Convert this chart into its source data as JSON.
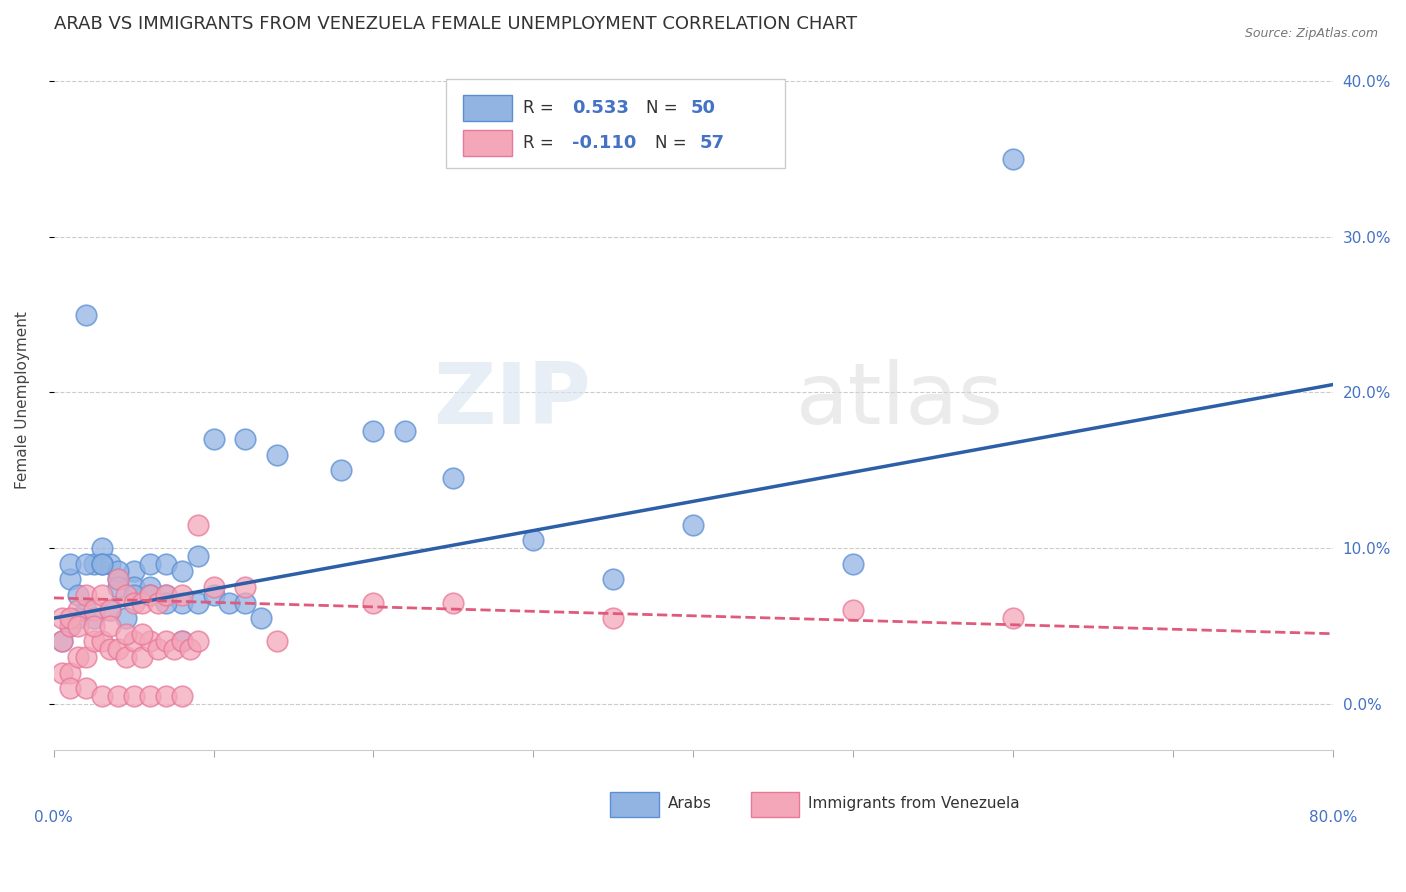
{
  "title": "ARAB VS IMMIGRANTS FROM VENEZUELA FEMALE UNEMPLOYMENT CORRELATION CHART",
  "source": "Source: ZipAtlas.com",
  "ylabel": "Female Unemployment",
  "xmin": 0.0,
  "xmax": 0.8,
  "ymin": -0.03,
  "ymax": 0.42,
  "arab_color": "#92b4e3",
  "arab_edge_color": "#5b8fd4",
  "venezuela_color": "#f4a7b9",
  "venezuela_edge_color": "#e8789a",
  "trend_arab_color": "#2c5fa8",
  "trend_venezuela_color": "#e05a7a",
  "legend_label_arab": "Arabs",
  "legend_label_venezuela": "Immigrants from Venezuela",
  "arab_R": 0.533,
  "arab_N": 50,
  "venezuela_R": -0.11,
  "venezuela_N": 57,
  "arab_x": [
    0.02,
    0.01,
    0.005,
    0.015,
    0.025,
    0.03,
    0.035,
    0.04,
    0.05,
    0.06,
    0.07,
    0.08,
    0.09,
    0.1,
    0.12,
    0.14,
    0.18,
    0.2,
    0.22,
    0.25,
    0.3,
    0.35,
    0.4,
    0.5,
    0.6,
    0.01,
    0.02,
    0.03,
    0.04,
    0.05,
    0.06,
    0.07,
    0.08,
    0.09,
    0.1,
    0.11,
    0.12,
    0.13,
    0.02,
    0.03,
    0.04,
    0.05,
    0.06,
    0.07,
    0.08,
    0.01,
    0.015,
    0.025,
    0.035,
    0.045
  ],
  "arab_y": [
    0.06,
    0.08,
    0.04,
    0.07,
    0.09,
    0.1,
    0.09,
    0.08,
    0.085,
    0.09,
    0.09,
    0.085,
    0.095,
    0.17,
    0.17,
    0.16,
    0.15,
    0.175,
    0.175,
    0.145,
    0.105,
    0.08,
    0.115,
    0.09,
    0.35,
    0.09,
    0.09,
    0.09,
    0.085,
    0.075,
    0.075,
    0.07,
    0.065,
    0.065,
    0.07,
    0.065,
    0.065,
    0.055,
    0.25,
    0.09,
    0.075,
    0.07,
    0.07,
    0.065,
    0.04,
    0.05,
    0.055,
    0.055,
    0.06,
    0.055
  ],
  "venezuela_x": [
    0.005,
    0.01,
    0.015,
    0.02,
    0.025,
    0.03,
    0.035,
    0.04,
    0.045,
    0.05,
    0.055,
    0.06,
    0.065,
    0.07,
    0.08,
    0.09,
    0.1,
    0.12,
    0.14,
    0.2,
    0.25,
    0.35,
    0.5,
    0.6,
    0.005,
    0.01,
    0.015,
    0.02,
    0.025,
    0.03,
    0.035,
    0.04,
    0.045,
    0.05,
    0.055,
    0.06,
    0.065,
    0.07,
    0.075,
    0.08,
    0.085,
    0.09,
    0.01,
    0.02,
    0.03,
    0.04,
    0.05,
    0.06,
    0.07,
    0.08,
    0.005,
    0.01,
    0.015,
    0.025,
    0.035,
    0.045,
    0.055
  ],
  "venezuela_y": [
    0.04,
    0.05,
    0.06,
    0.07,
    0.06,
    0.07,
    0.06,
    0.08,
    0.07,
    0.065,
    0.065,
    0.07,
    0.065,
    0.07,
    0.07,
    0.115,
    0.075,
    0.075,
    0.04,
    0.065,
    0.065,
    0.055,
    0.06,
    0.055,
    0.02,
    0.02,
    0.03,
    0.03,
    0.04,
    0.04,
    0.035,
    0.035,
    0.03,
    0.04,
    0.03,
    0.04,
    0.035,
    0.04,
    0.035,
    0.04,
    0.035,
    0.04,
    0.01,
    0.01,
    0.005,
    0.005,
    0.005,
    0.005,
    0.005,
    0.005,
    0.055,
    0.055,
    0.05,
    0.05,
    0.05,
    0.045,
    0.045
  ],
  "watermark_zip": "ZIP",
  "watermark_atlas": "atlas",
  "grid_color": "#cccccc",
  "bg_color": "#ffffff",
  "title_fontsize": 13,
  "tick_label_color_blue": "#4472c4",
  "arab_trend_x0": 0.0,
  "arab_trend_x1": 0.8,
  "arab_trend_y0": 0.055,
  "arab_trend_y1": 0.205,
  "ven_trend_x0": 0.0,
  "ven_trend_x1": 0.8,
  "ven_trend_y0": 0.068,
  "ven_trend_y1": 0.045
}
